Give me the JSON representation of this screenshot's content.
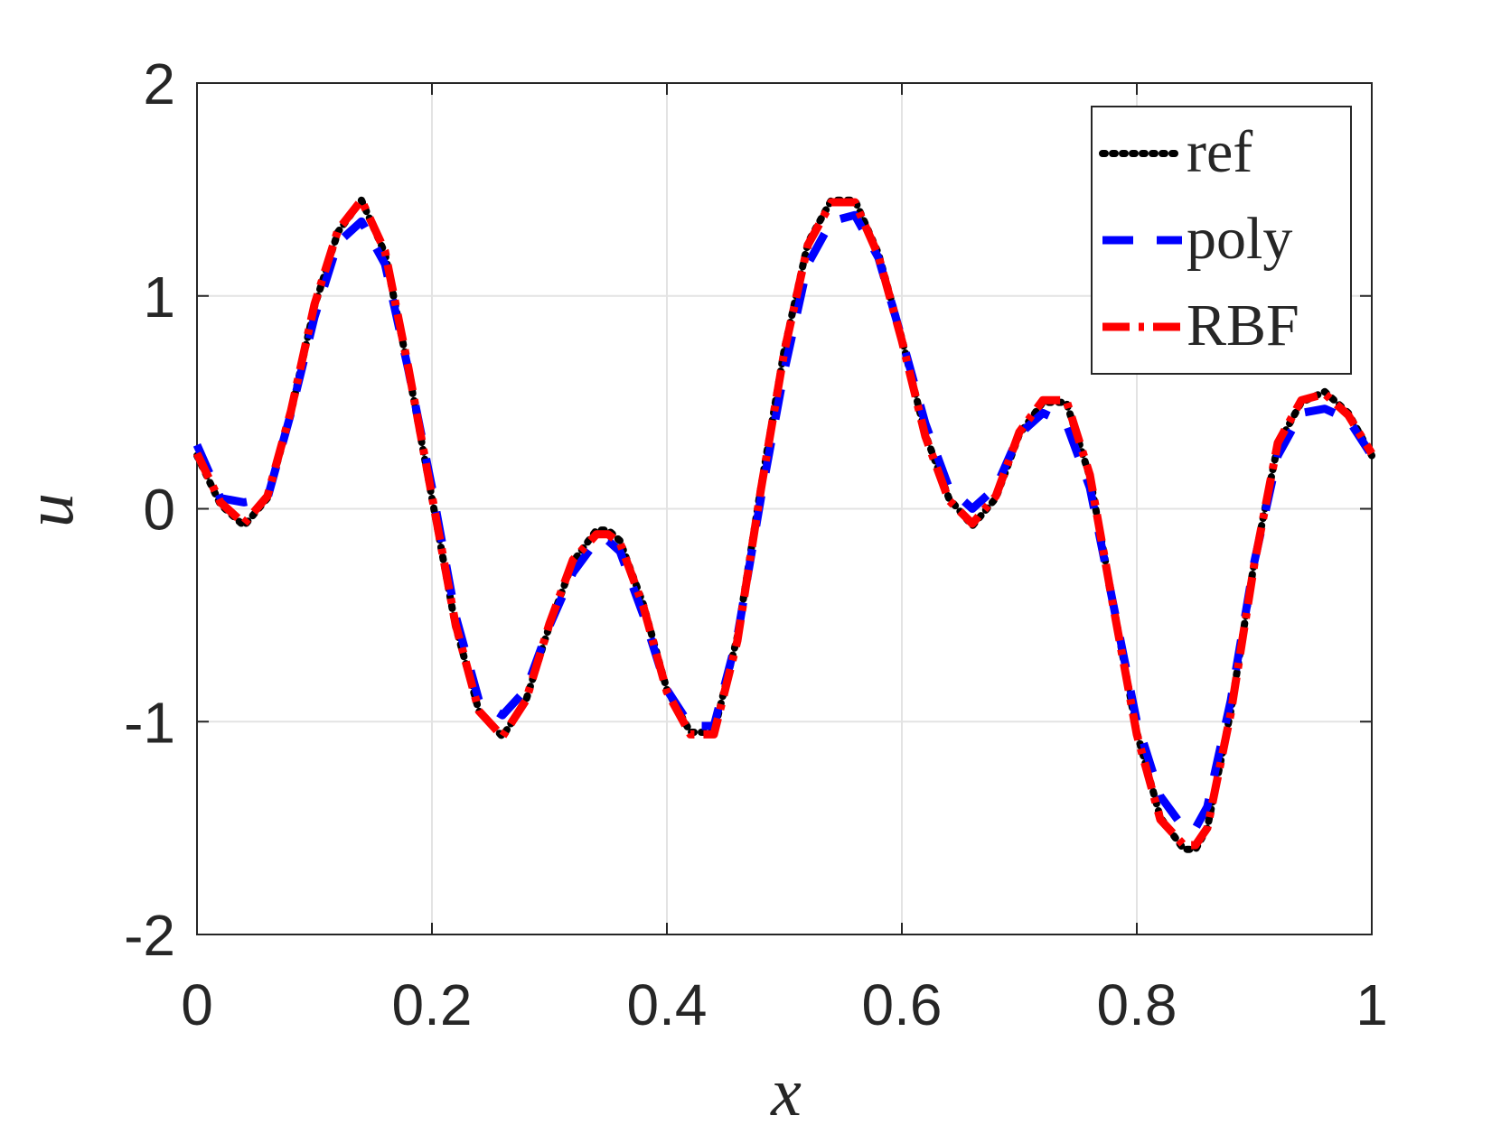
{
  "chart_data": {
    "type": "line",
    "title": "",
    "xlabel": "x",
    "ylabel": "u",
    "xlim": [
      0,
      1
    ],
    "ylim": [
      -2,
      2
    ],
    "xticks": [
      0,
      0.2,
      0.4,
      0.6,
      0.8,
      1
    ],
    "xtick_labels": [
      "0",
      "0.2",
      "0.4",
      "0.6",
      "0.8",
      "1"
    ],
    "yticks": [
      -2,
      -1,
      0,
      1,
      2
    ],
    "ytick_labels": [
      "-2",
      "-1",
      "0",
      "1",
      "2"
    ],
    "grid": true,
    "legend_position": "top-right",
    "x": [
      0,
      0.02,
      0.04,
      0.06,
      0.08,
      0.1,
      0.12,
      0.14,
      0.16,
      0.18,
      0.2,
      0.22,
      0.24,
      0.26,
      0.28,
      0.3,
      0.32,
      0.34,
      0.35,
      0.36,
      0.38,
      0.4,
      0.42,
      0.44,
      0.46,
      0.48,
      0.5,
      0.52,
      0.54,
      0.56,
      0.58,
      0.6,
      0.62,
      0.64,
      0.66,
      0.68,
      0.7,
      0.72,
      0.74,
      0.76,
      0.78,
      0.8,
      0.82,
      0.84,
      0.85,
      0.86,
      0.88,
      0.9,
      0.92,
      0.94,
      0.96,
      0.98,
      1.0
    ],
    "series": [
      {
        "name": "ref",
        "color": "#000000",
        "style": "dotted",
        "values": [
          0.25,
          0.02,
          -0.08,
          0.05,
          0.45,
          0.95,
          1.3,
          1.45,
          1.2,
          0.65,
          0.05,
          -0.55,
          -0.95,
          -1.07,
          -0.9,
          -0.55,
          -0.25,
          -0.1,
          -0.1,
          -0.15,
          -0.45,
          -0.85,
          -1.05,
          -1.05,
          -0.6,
          0.1,
          0.75,
          1.25,
          1.45,
          1.45,
          1.2,
          0.8,
          0.35,
          0.05,
          -0.08,
          0.05,
          0.35,
          0.5,
          0.5,
          0.15,
          -0.45,
          -1.05,
          -1.45,
          -1.6,
          -1.6,
          -1.5,
          -0.95,
          -0.25,
          0.3,
          0.5,
          0.55,
          0.45,
          0.25
        ]
      },
      {
        "name": "poly",
        "color": "#0000ff",
        "style": "dashed",
        "values": [
          0.3,
          0.05,
          0.03,
          0.05,
          0.45,
          0.9,
          1.25,
          1.35,
          1.15,
          0.65,
          0.1,
          -0.5,
          -0.9,
          -0.97,
          -0.85,
          -0.55,
          -0.3,
          -0.15,
          -0.15,
          -0.2,
          -0.5,
          -0.85,
          -1.02,
          -1.02,
          -0.6,
          0.05,
          0.65,
          1.15,
          1.35,
          1.38,
          1.18,
          0.8,
          0.4,
          0.1,
          0.0,
          0.1,
          0.35,
          0.45,
          0.4,
          0.1,
          -0.45,
          -1.0,
          -1.35,
          -1.5,
          -1.5,
          -1.4,
          -0.9,
          -0.25,
          0.25,
          0.45,
          0.47,
          0.42,
          0.25
        ]
      },
      {
        "name": "RBF",
        "color": "#ff0000",
        "style": "dashdot",
        "values": [
          0.26,
          0.03,
          -0.07,
          0.06,
          0.46,
          0.96,
          1.31,
          1.45,
          1.21,
          0.66,
          0.06,
          -0.54,
          -0.95,
          -1.07,
          -0.9,
          -0.54,
          -0.24,
          -0.12,
          -0.12,
          -0.16,
          -0.46,
          -0.86,
          -1.06,
          -1.06,
          -0.62,
          0.09,
          0.74,
          1.24,
          1.44,
          1.44,
          1.19,
          0.79,
          0.34,
          0.04,
          -0.07,
          0.06,
          0.36,
          0.51,
          0.51,
          0.16,
          -0.46,
          -1.06,
          -1.46,
          -1.58,
          -1.58,
          -1.5,
          -0.96,
          -0.26,
          0.31,
          0.51,
          0.54,
          0.44,
          0.26
        ]
      }
    ]
  }
}
